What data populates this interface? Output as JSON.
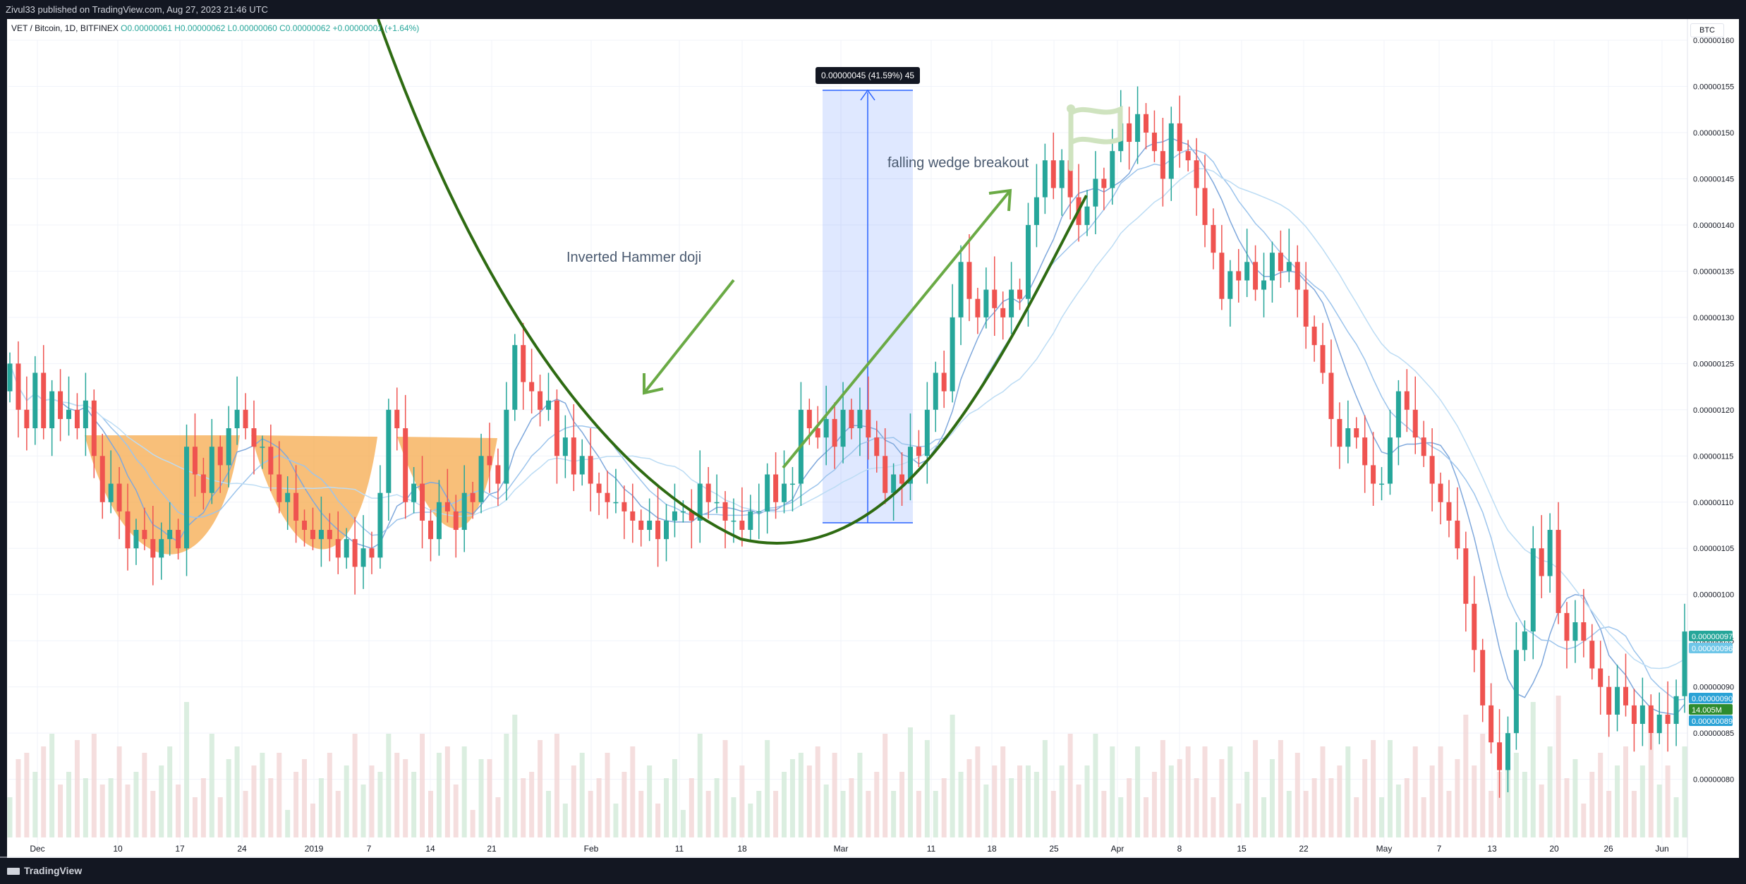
{
  "header": {
    "published": "Zivul33 published on TradingView.com, Aug 27, 2023 21:46 UTC"
  },
  "legend": {
    "symbol": "VET / Bitcoin, 1D, BITFINEX",
    "open": "O0.00000061",
    "high": "H0.00000062",
    "low": "L0.00000060",
    "close": "C0.00000062",
    "change": "+0.00000001 (+1.64%)"
  },
  "currency": "BTC",
  "footer": {
    "brand": "TradingView"
  },
  "annotations": {
    "inverted_hammer": "Inverted Hammer doji",
    "falling_wedge": "falling wedge breakout",
    "measure": "0.00000045 (41.59%) 45"
  },
  "price_badges": [
    "0.00000097",
    "0.00000096",
    "0.00000090",
    "14.005M",
    "0.00000089"
  ],
  "colors": {
    "up": "#26a69a",
    "down": "#ef5350",
    "ma": "#8fb8e8",
    "curve": "#2e6b12",
    "arrow": "#6aaa45",
    "cup": "#f6a94c",
    "measure": "#2962ff"
  },
  "chart_data": {
    "type": "candlestick",
    "x": [
      "Dec",
      "10",
      "17",
      "24",
      "2019",
      "7",
      "14",
      "21",
      "Feb",
      "11",
      "18",
      "Mar",
      "11",
      "18",
      "25",
      "Apr",
      "8",
      "15",
      "22",
      "May",
      "7",
      "13",
      "20",
      "26",
      "Jun"
    ],
    "y_ticks": [
      "0.00000160",
      "0.00000155",
      "0.00000150",
      "0.00000145",
      "0.00000140",
      "0.00000135",
      "0.00000130",
      "0.00000125",
      "0.00000120",
      "0.00000115",
      "0.00000110",
      "0.00000105",
      "0.00000100",
      "0.00000095",
      "0.00000090",
      "0.00000085",
      "0.00000080"
    ],
    "ylim": [
      7.6e-07,
      1.6e-06
    ],
    "closes": [
      1.25,
      1.2,
      1.18,
      1.24,
      1.18,
      1.22,
      1.19,
      1.2,
      1.18,
      1.21,
      1.15,
      1.1,
      1.12,
      1.09,
      1.05,
      1.07,
      1.06,
      1.04,
      1.06,
      1.07,
      1.05,
      1.16,
      1.13,
      1.11,
      1.16,
      1.14,
      1.18,
      1.2,
      1.18,
      1.16,
      1.16,
      1.13,
      1.1,
      1.11,
      1.08,
      1.07,
      1.06,
      1.07,
      1.06,
      1.04,
      1.06,
      1.03,
      1.05,
      1.04,
      1.11,
      1.2,
      1.18,
      1.1,
      1.12,
      1.08,
      1.06,
      1.1,
      1.09,
      1.07,
      1.11,
      1.1,
      1.15,
      1.14,
      1.12,
      1.2,
      1.27,
      1.23,
      1.22,
      1.2,
      1.21,
      1.15,
      1.17,
      1.13,
      1.15,
      1.12,
      1.11,
      1.1,
      1.1,
      1.09,
      1.08,
      1.07,
      1.08,
      1.06,
      1.08,
      1.09,
      1.09,
      1.08,
      1.12,
      1.1,
      1.1,
      1.08,
      1.08,
      1.07,
      1.09,
      1.09,
      1.13,
      1.1,
      1.12,
      1.12,
      1.2,
      1.18,
      1.17,
      1.19,
      1.16,
      1.2,
      1.18,
      1.2,
      1.17,
      1.15,
      1.11,
      1.13,
      1.12,
      1.16,
      1.15,
      1.2,
      1.24,
      1.22,
      1.3,
      1.36,
      1.32,
      1.3,
      1.33,
      1.31,
      1.3,
      1.33,
      1.32,
      1.4,
      1.43,
      1.47,
      1.44,
      1.47,
      1.43,
      1.4,
      1.42,
      1.45,
      1.44,
      1.48,
      1.51,
      1.49,
      1.52,
      1.5,
      1.48,
      1.45,
      1.51,
      1.48,
      1.47,
      1.44,
      1.4,
      1.37,
      1.32,
      1.35,
      1.34,
      1.36,
      1.33,
      1.34,
      1.37,
      1.35,
      1.36,
      1.33,
      1.29,
      1.27,
      1.24,
      1.19,
      1.16,
      1.18,
      1.17,
      1.14,
      1.12,
      1.12,
      1.17,
      1.22,
      1.2,
      1.17,
      1.15,
      1.12,
      1.1,
      1.08,
      1.05,
      0.99,
      0.94,
      0.88,
      0.84,
      0.81,
      0.85,
      0.94,
      0.96,
      1.05,
      1.02,
      1.07,
      0.98,
      0.95,
      0.97,
      0.95,
      0.92,
      0.9,
      0.87,
      0.9,
      0.88,
      0.86,
      0.88,
      0.85,
      0.87,
      0.86,
      0.89,
      0.96
    ]
  }
}
